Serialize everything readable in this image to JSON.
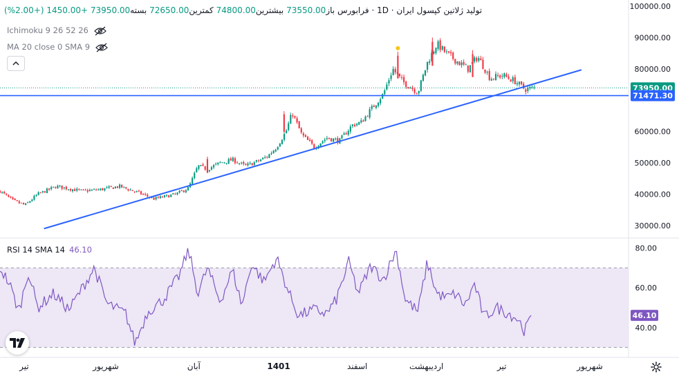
{
  "header": {
    "symbol": "تولید ژلاتین کپسول ایران",
    "timeframe": "1D",
    "exchange": "فرابورس",
    "open_label": "باز",
    "open": "73550.00",
    "high_label": "بیشترین",
    "high": "74800.00",
    "low_label": "کمترین",
    "low": "72650.00",
    "close_label": "بسته",
    "close": "73950.00",
    "change": "+1450.00",
    "change_pct": "(+2.00%)"
  },
  "indicators": {
    "ichimoku": "Ichimoku 9 26 52 26",
    "ma": "MA 20 close 0 SMA 9"
  },
  "rsi": {
    "label": "RSI 14 SMA 14",
    "value": "46.10"
  },
  "colors": {
    "up": "#089981",
    "down": "#f23645",
    "trendline": "#2962ff",
    "rsi_line": "#7e57c2",
    "rsi_band": "#ede7f6",
    "last_price_badge": "#089981",
    "level_badge": "#2962ff"
  },
  "chart_data": [
    {
      "type": "candlestick",
      "y_ticks": [
        "100000.00",
        "90000.00",
        "80000.00",
        "60000.00",
        "50000.00",
        "40000.00",
        "30000.00"
      ],
      "ylim": [
        26000,
        102000
      ],
      "x_ticks": [
        "تیر",
        "شهریور",
        "آبان",
        "1401",
        "اسفند",
        "اردیبهشت",
        "تیر",
        "شهریور"
      ],
      "last_price": "73950.00",
      "horizontal_level": "71471.30",
      "trendline": [
        [
          0.07,
          29000
        ],
        [
          0.925,
          79700
        ]
      ],
      "close_anchors": [
        [
          0,
          41000
        ],
        [
          0.02,
          38000
        ],
        [
          0.04,
          36500
        ],
        [
          0.06,
          40000
        ],
        [
          0.09,
          42500
        ],
        [
          0.13,
          41000
        ],
        [
          0.16,
          41500
        ],
        [
          0.19,
          42500
        ],
        [
          0.22,
          40500
        ],
        [
          0.245,
          38500
        ],
        [
          0.28,
          40000
        ],
        [
          0.3,
          42000
        ],
        [
          0.315,
          49000
        ],
        [
          0.33,
          48000
        ],
        [
          0.35,
          50000
        ],
        [
          0.37,
          51000
        ],
        [
          0.39,
          49000
        ],
        [
          0.41,
          50500
        ],
        [
          0.425,
          52000
        ],
        [
          0.44,
          55000
        ],
        [
          0.455,
          60000
        ],
        [
          0.465,
          66000
        ],
        [
          0.48,
          59000
        ],
        [
          0.5,
          55000
        ],
        [
          0.52,
          58000
        ],
        [
          0.54,
          57000
        ],
        [
          0.56,
          62000
        ],
        [
          0.575,
          63000
        ],
        [
          0.59,
          67000
        ],
        [
          0.61,
          72000
        ],
        [
          0.625,
          80000
        ],
        [
          0.64,
          76000
        ],
        [
          0.655,
          74000
        ],
        [
          0.665,
          72500
        ],
        [
          0.68,
          82000
        ],
        [
          0.695,
          88000
        ],
        [
          0.71,
          85000
        ],
        [
          0.73,
          82000
        ],
        [
          0.745,
          80000
        ],
        [
          0.76,
          84000
        ],
        [
          0.78,
          77000
        ],
        [
          0.8,
          78000
        ],
        [
          0.82,
          76000
        ],
        [
          0.835,
          73500
        ],
        [
          0.85,
          73950
        ]
      ],
      "spikes": [
        [
          0.633,
          85500
        ],
        [
          0.688,
          90000
        ],
        [
          0.752,
          86000
        ],
        [
          0.452,
          66500
        ],
        [
          0.33,
          52000
        ]
      ]
    },
    {
      "type": "line",
      "name": "RSI 14",
      "y_ticks": [
        "80.00",
        "60.00",
        "40.00"
      ],
      "ylim": [
        25,
        85
      ],
      "bands": [
        30,
        70
      ],
      "last": 46.1,
      "anchors": [
        [
          0,
          70
        ],
        [
          0.015,
          62
        ],
        [
          0.03,
          48
        ],
        [
          0.045,
          68
        ],
        [
          0.06,
          50
        ],
        [
          0.085,
          57
        ],
        [
          0.11,
          49
        ],
        [
          0.135,
          62
        ],
        [
          0.15,
          70
        ],
        [
          0.17,
          52
        ],
        [
          0.2,
          47
        ],
        [
          0.215,
          32
        ],
        [
          0.235,
          48
        ],
        [
          0.26,
          54
        ],
        [
          0.285,
          66
        ],
        [
          0.3,
          79
        ],
        [
          0.315,
          57
        ],
        [
          0.33,
          70
        ],
        [
          0.35,
          53
        ],
        [
          0.37,
          69
        ],
        [
          0.385,
          51
        ],
        [
          0.4,
          72
        ],
        [
          0.42,
          63
        ],
        [
          0.44,
          75
        ],
        [
          0.46,
          57
        ],
        [
          0.475,
          46
        ],
        [
          0.5,
          49
        ],
        [
          0.52,
          47
        ],
        [
          0.535,
          54
        ],
        [
          0.555,
          73
        ],
        [
          0.57,
          57
        ],
        [
          0.59,
          71
        ],
        [
          0.61,
          64
        ],
        [
          0.63,
          79
        ],
        [
          0.645,
          54
        ],
        [
          0.665,
          48
        ],
        [
          0.68,
          73
        ],
        [
          0.695,
          57
        ],
        [
          0.71,
          55
        ],
        [
          0.725,
          57
        ],
        [
          0.74,
          51
        ],
        [
          0.755,
          62
        ],
        [
          0.77,
          45
        ],
        [
          0.79,
          50
        ],
        [
          0.81,
          47
        ],
        [
          0.825,
          44
        ],
        [
          0.835,
          38
        ],
        [
          0.845,
          46.1
        ]
      ]
    }
  ]
}
